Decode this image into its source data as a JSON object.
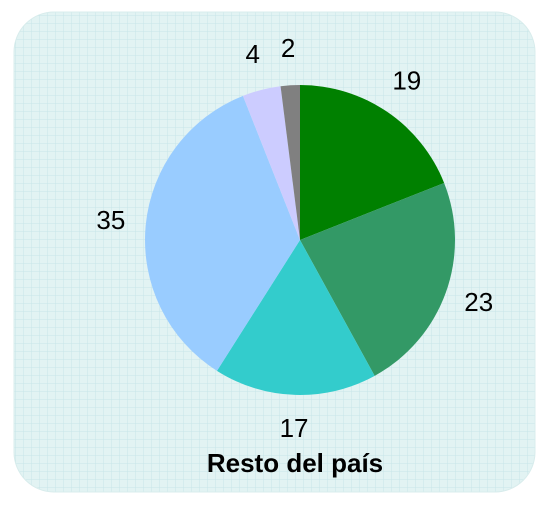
{
  "chart_data": {
    "type": "pie",
    "title": "Resto del país",
    "values": [
      19,
      23,
      17,
      35,
      4,
      2
    ],
    "colors": [
      "#008000",
      "#339966",
      "#33cccc",
      "#99ccff",
      "#ccccff",
      "#808080"
    ]
  }
}
